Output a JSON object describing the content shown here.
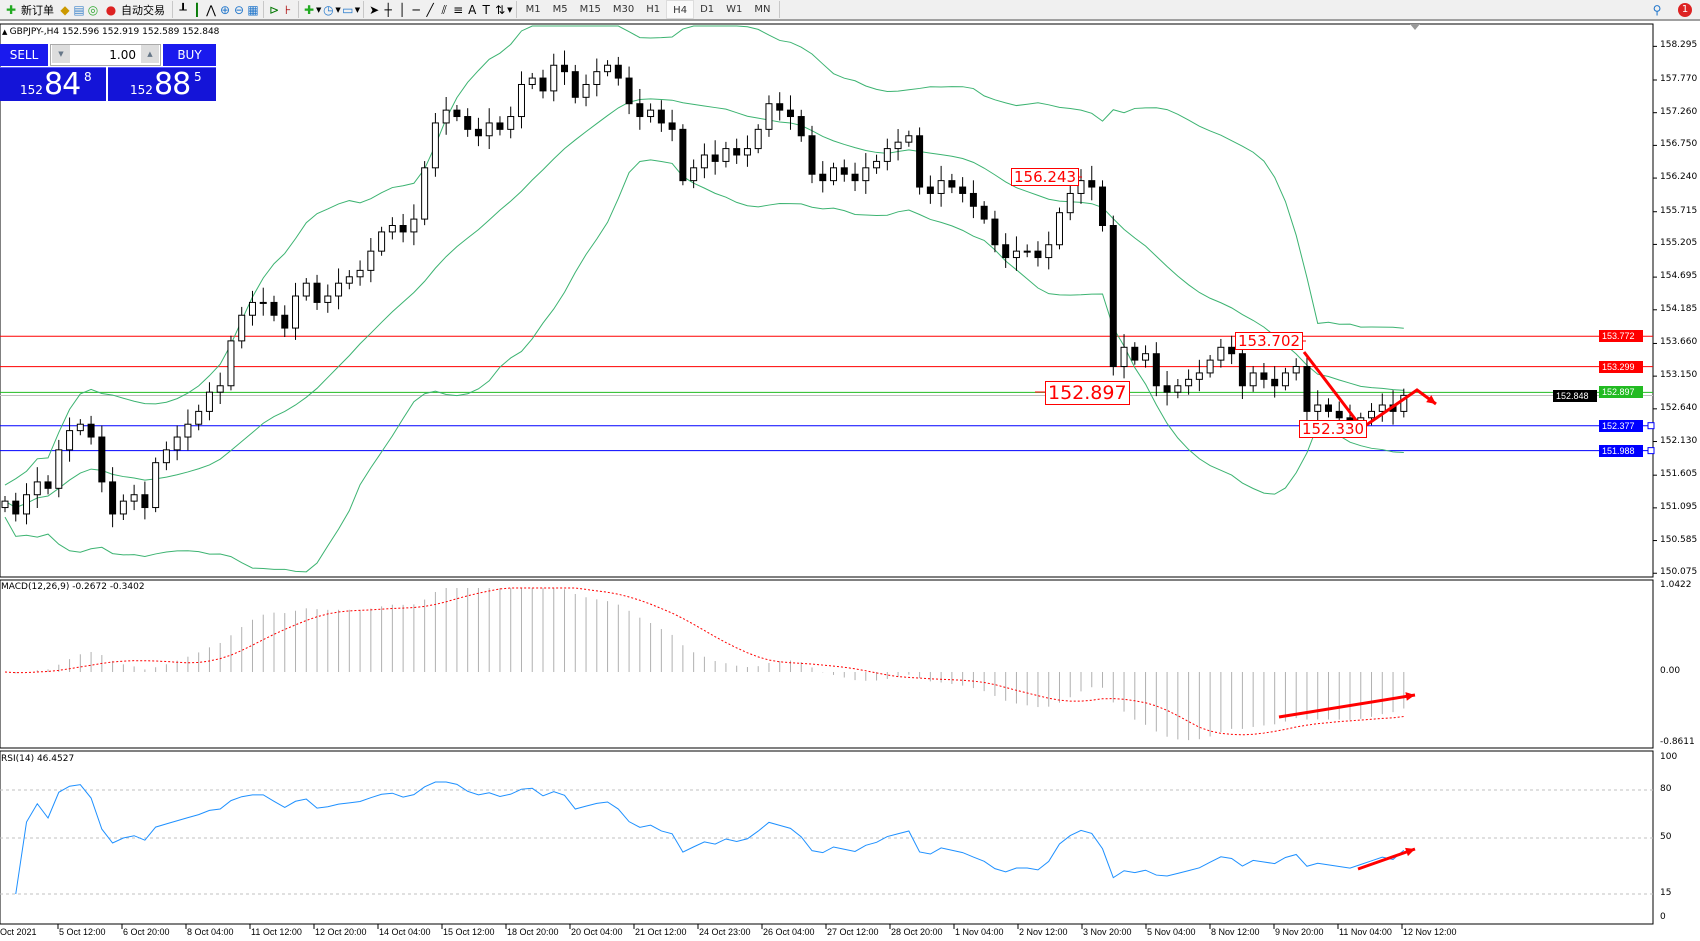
{
  "toolbar": {
    "new_order": "新订单",
    "auto_trading": "自动交易",
    "timeframes": [
      "M1",
      "M5",
      "M15",
      "M30",
      "H1",
      "H4",
      "D1",
      "W1",
      "MN"
    ],
    "active_timeframe": "H4",
    "notification_count": "1"
  },
  "chart": {
    "header": "GBPJPY-,H4  152.596 152.919 152.589 152.848",
    "symbol": "GBPJPY-",
    "timeframe": "H4"
  },
  "one_click": {
    "sell_label": "SELL",
    "buy_label": "BUY",
    "lot": "1.00",
    "sell_price": {
      "prefix": "152",
      "big": "84",
      "sup": "8"
    },
    "buy_price": {
      "prefix": "152",
      "big": "88",
      "sup": "5"
    }
  },
  "price_axis": [
    "158.295",
    "157.770",
    "157.260",
    "156.750",
    "156.240",
    "155.715",
    "155.205",
    "154.695",
    "154.185",
    "153.660",
    "153.150",
    "152.640",
    "152.130",
    "151.605",
    "151.095",
    "150.585",
    "150.075"
  ],
  "levels": [
    {
      "price": "153.772",
      "color": "#ff0000"
    },
    {
      "price": "153.299",
      "color": "#ff0000"
    },
    {
      "price": "152.897",
      "color": "#22bb22"
    },
    {
      "price": "152.848",
      "color": "#000000"
    },
    {
      "price": "152.377",
      "color": "#0000ff"
    },
    {
      "price": "151.988",
      "color": "#0000ff"
    }
  ],
  "annotations": [
    "156.243",
    "153.702",
    "152.897",
    "152.330"
  ],
  "time_axis": [
    "Oct 2021",
    "5 Oct 12:00",
    "6 Oct 20:00",
    "8 Oct 04:00",
    "11 Oct 12:00",
    "12 Oct 20:00",
    "14 Oct 04:00",
    "15 Oct 12:00",
    "18 Oct 20:00",
    "20 Oct 04:00",
    "21 Oct 12:00",
    "24 Oct 23:00",
    "26 Oct 04:00",
    "27 Oct 12:00",
    "28 Oct 20:00",
    "1 Nov 04:00",
    "2 Nov 12:00",
    "3 Nov 20:00",
    "5 Nov 04:00",
    "8 Nov 12:00",
    "9 Nov 20:00",
    "11 Nov 04:00",
    "12 Nov 12:00"
  ],
  "macd": {
    "label": "MACD(12,26,9) -0.2672 -0.3402",
    "axis": [
      "1.0422",
      "0.00",
      "-0.8611"
    ]
  },
  "rsi": {
    "label": "RSI(14) 46.4527",
    "axis": [
      "100",
      "80",
      "50",
      "15",
      "0"
    ]
  },
  "colors": {
    "bands": "#3cb371",
    "rsi": "#1e90ff",
    "signal": "#ff0000",
    "histogram": "#b0b0b0",
    "arrows": "#ff0000"
  },
  "chart_data": {
    "type": "candlestick",
    "closes": [
      151.2,
      151.0,
      151.3,
      151.5,
      151.4,
      152.0,
      152.3,
      152.4,
      152.2,
      151.5,
      151.0,
      151.2,
      151.3,
      151.1,
      151.8,
      152.0,
      152.2,
      152.4,
      152.6,
      152.9,
      153.0,
      153.7,
      154.1,
      154.3,
      154.3,
      154.1,
      153.9,
      154.4,
      154.6,
      154.3,
      154.4,
      154.6,
      154.7,
      154.8,
      155.1,
      155.4,
      155.5,
      155.4,
      155.6,
      156.4,
      157.1,
      157.3,
      157.2,
      157.0,
      156.9,
      157.1,
      157.0,
      157.2,
      157.7,
      157.8,
      157.6,
      158.0,
      157.9,
      157.5,
      157.7,
      157.9,
      158.0,
      157.8,
      157.4,
      157.2,
      157.3,
      157.1,
      157.0,
      156.2,
      156.4,
      156.6,
      156.5,
      156.7,
      156.6,
      156.7,
      157.0,
      157.4,
      157.3,
      157.2,
      156.9,
      156.3,
      156.2,
      156.4,
      156.3,
      156.2,
      156.4,
      156.5,
      156.7,
      156.8,
      156.9,
      156.1,
      156.0,
      156.2,
      156.1,
      156.0,
      155.8,
      155.6,
      155.2,
      155.0,
      155.1,
      155.1,
      155.0,
      155.2,
      155.7,
      156.0,
      156.2,
      156.1,
      155.5,
      153.3,
      153.6,
      153.4,
      153.5,
      153.0,
      152.9,
      153.0,
      153.1,
      153.2,
      153.4,
      153.6,
      153.5,
      153.0,
      153.2,
      153.1,
      153.0,
      153.2,
      153.3,
      152.6,
      152.7,
      152.6,
      152.5,
      152.4,
      152.5,
      152.6,
      152.7,
      152.6,
      152.85
    ]
  }
}
